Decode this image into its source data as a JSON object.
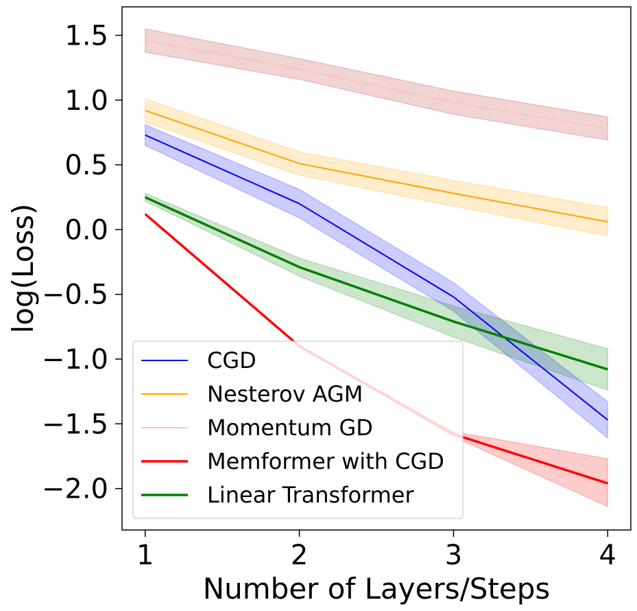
{
  "chart_data": {
    "type": "line",
    "xlabel": "Number of Layers/Steps",
    "ylabel": "log(Loss)",
    "x": [
      1,
      2,
      3,
      4
    ],
    "xticks": [
      1,
      2,
      3,
      4
    ],
    "yticks": [
      1.5,
      1.0,
      0.5,
      0.0,
      -0.5,
      -1.0,
      -1.5,
      -2.0
    ],
    "ytick_labels": [
      "1.5",
      "1.0",
      "0.5",
      "0.0",
      "−0.5",
      "−1.0",
      "−1.5",
      "−2.0"
    ],
    "xlim": [
      0.85,
      4.15
    ],
    "ylim": [
      -2.32,
      1.72
    ],
    "grid": false,
    "legend_position": "lower-left",
    "series": [
      {
        "name": "CGD",
        "color": "#0000ff",
        "band_color": "#0000ff",
        "line_width": "thin",
        "values": [
          0.73,
          0.2,
          -0.52,
          -1.47
        ],
        "upper": [
          0.81,
          0.31,
          -0.41,
          -1.33
        ],
        "lower": [
          0.65,
          0.09,
          -0.63,
          -1.61
        ]
      },
      {
        "name": "Nesterov AGM",
        "color": "#ffa500",
        "band_color": "#ffa500",
        "line_width": "thin",
        "values": [
          0.92,
          0.51,
          0.28,
          0.06
        ],
        "upper": [
          1.01,
          0.6,
          0.38,
          0.17
        ],
        "lower": [
          0.83,
          0.42,
          0.18,
          -0.05
        ]
      },
      {
        "name": "Momentum GD",
        "color": "#ffc0cb",
        "band_color": "#b22222",
        "line_width": "thin",
        "values": [
          1.46,
          1.24,
          0.98,
          0.78
        ],
        "upper": [
          1.55,
          1.32,
          1.07,
          0.87
        ],
        "lower": [
          1.37,
          1.16,
          0.89,
          0.69
        ]
      },
      {
        "name": "Memformer with CGD",
        "color": "#ff0000",
        "band_color": "#ff0000",
        "line_width": "thick",
        "values": [
          0.12,
          -0.9,
          -1.58,
          -1.96
        ],
        "upper": [
          0.12,
          -0.9,
          -1.56,
          -1.77
        ],
        "lower": [
          0.12,
          -0.9,
          -1.6,
          -2.14
        ]
      },
      {
        "name": "Linear Transformer",
        "color": "#008000",
        "band_color": "#008000",
        "line_width": "thick",
        "values": [
          0.25,
          -0.29,
          -0.71,
          -1.08
        ],
        "upper": [
          0.28,
          -0.22,
          -0.59,
          -0.92
        ],
        "lower": [
          0.22,
          -0.36,
          -0.83,
          -1.24
        ]
      }
    ]
  }
}
